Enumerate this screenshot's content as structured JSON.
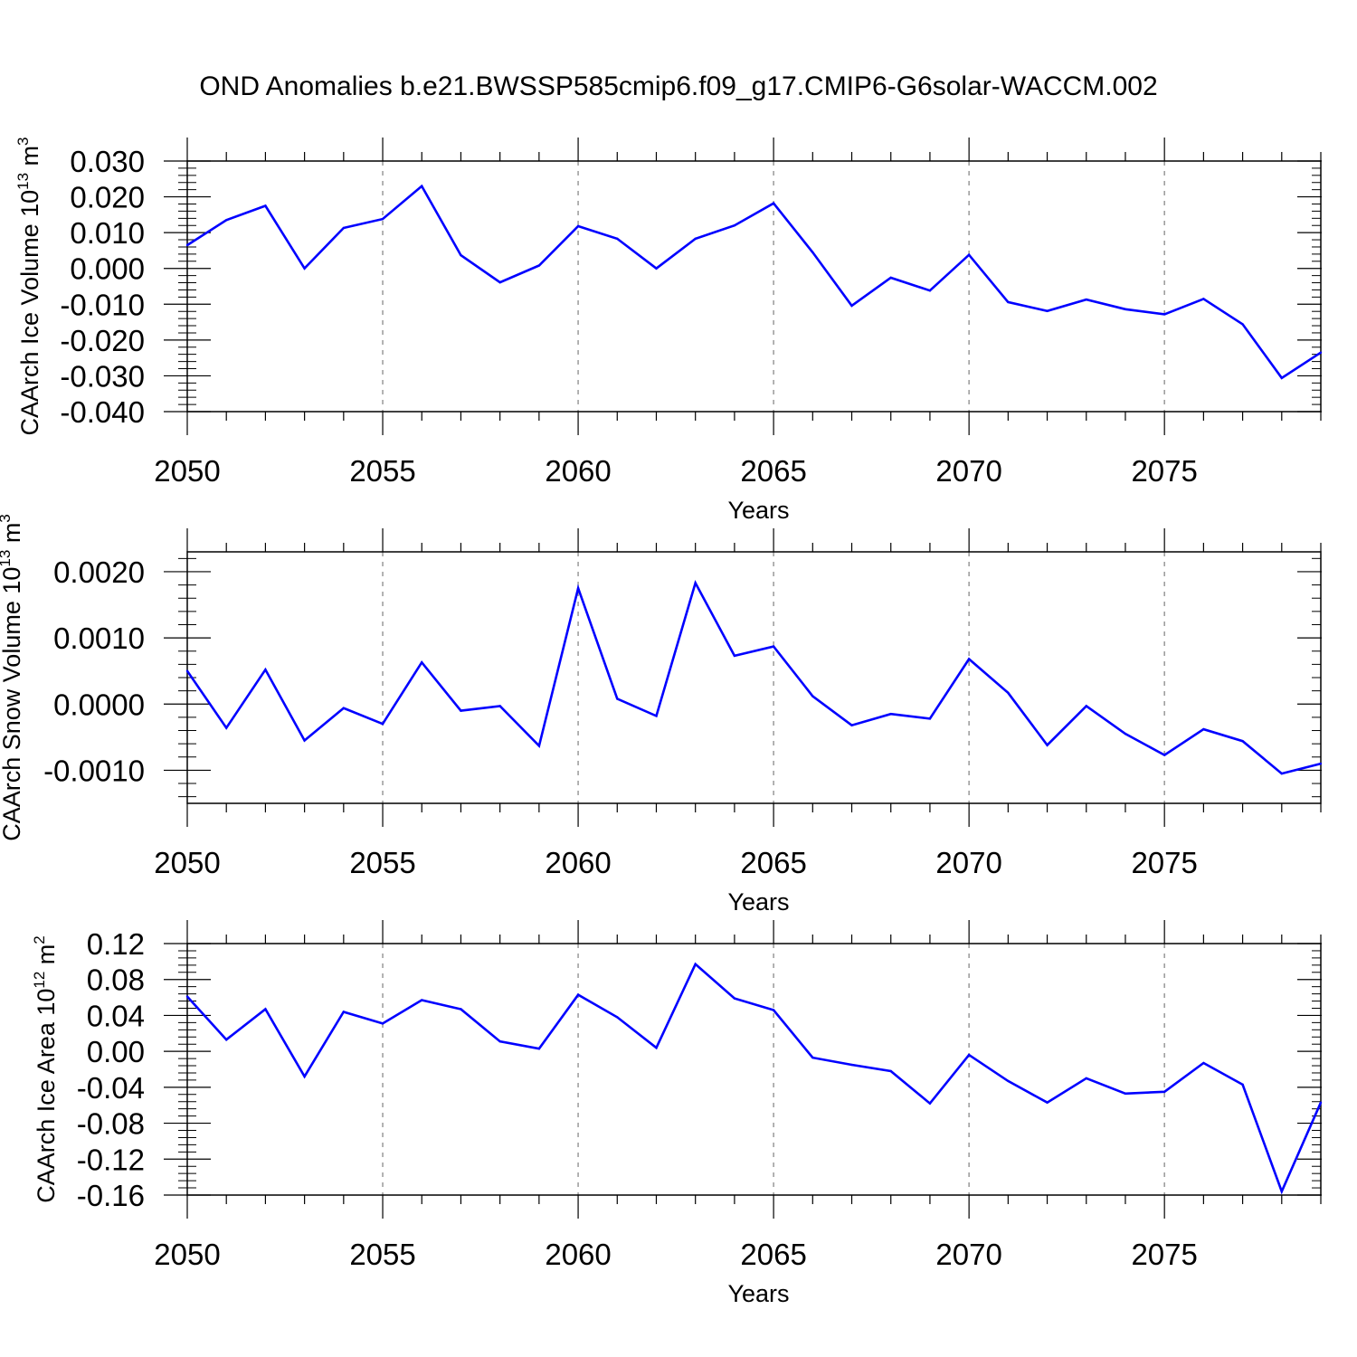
{
  "figure": {
    "title": "OND Anomalies b.e21.BWSSP585cmip6.f09_g17.CMIP6-G6solar-WACCM.002"
  },
  "colors": {
    "line": "#0000ff",
    "axis": "#000000",
    "grid": "#999999",
    "background": "#ffffff"
  },
  "chart_data": [
    {
      "type": "line",
      "title": "OND Anomalies b.e21.BWSSP585cmip6.f09_g17.CMIP6-G6solar-WACCM.002",
      "xlabel": "Years",
      "ylabel": {
        "text": "CAArch Ice Volume 10",
        "exp": "13",
        "unit": " m",
        "unit_exp": "3"
      },
      "xlim": [
        2050,
        2079
      ],
      "ylim": [
        -0.04,
        0.03
      ],
      "xticks": [
        2050,
        2055,
        2060,
        2065,
        2070,
        2075
      ],
      "xtick_labels": [
        "2050",
        "2055",
        "2060",
        "2065",
        "2070",
        "2075"
      ],
      "yticks": [
        -0.04,
        -0.03,
        -0.02,
        -0.01,
        0.0,
        0.01,
        0.02,
        0.03
      ],
      "ytick_labels": [
        "-0.040",
        "-0.030",
        "-0.020",
        "-0.010",
        "0.000",
        "0.010",
        "0.020",
        "0.030"
      ],
      "grid": "vertical dashed at major x ticks",
      "x": [
        2050,
        2051,
        2052,
        2053,
        2054,
        2055,
        2056,
        2057,
        2058,
        2059,
        2060,
        2061,
        2062,
        2063,
        2064,
        2065,
        2066,
        2067,
        2068,
        2069,
        2070,
        2071,
        2072,
        2073,
        2074,
        2075,
        2076,
        2077,
        2078,
        2079
      ],
      "values": [
        0.0065,
        0.0135,
        0.0175,
        0.0,
        0.0113,
        0.0138,
        0.023,
        0.0037,
        -0.0039,
        0.0008,
        0.0118,
        0.0083,
        0.0,
        0.0083,
        0.012,
        0.0182,
        0.0045,
        -0.0104,
        -0.0026,
        -0.0062,
        0.0038,
        -0.0094,
        -0.0119,
        -0.0087,
        -0.0114,
        -0.0128,
        -0.0085,
        -0.0156,
        -0.0306,
        -0.0235
      ]
    },
    {
      "type": "line",
      "xlabel": "Years",
      "ylabel": {
        "text": "CAArch Snow Volume 10",
        "exp": "13",
        "unit": " m",
        "unit_exp": "3"
      },
      "xlim": [
        2050,
        2079
      ],
      "ylim": [
        -0.0015,
        0.0023
      ],
      "xticks": [
        2050,
        2055,
        2060,
        2065,
        2070,
        2075
      ],
      "xtick_labels": [
        "2050",
        "2055",
        "2060",
        "2065",
        "2070",
        "2075"
      ],
      "yticks": [
        -0.001,
        0.0,
        0.001,
        0.002
      ],
      "ytick_labels": [
        "-0.0010",
        "0.0000",
        "0.0010",
        "0.0020"
      ],
      "grid": "vertical dashed at major x ticks",
      "x": [
        2050,
        2051,
        2052,
        2053,
        2054,
        2055,
        2056,
        2057,
        2058,
        2059,
        2060,
        2061,
        2062,
        2063,
        2064,
        2065,
        2066,
        2067,
        2068,
        2069,
        2070,
        2071,
        2072,
        2073,
        2074,
        2075,
        2076,
        2077,
        2078,
        2079
      ],
      "values": [
        0.0005,
        -0.00036,
        0.00052,
        -0.00055,
        -6e-05,
        -0.0003,
        0.00063,
        -0.0001,
        -3e-05,
        -0.00063,
        0.00175,
        8e-05,
        -0.00018,
        0.00183,
        0.00073,
        0.00087,
        0.00012,
        -0.00032,
        -0.00015,
        -0.00022,
        0.00068,
        0.00017,
        -0.00062,
        -3e-05,
        -0.00045,
        -0.00077,
        -0.00038,
        -0.00056,
        -0.00105,
        -0.0009
      ]
    },
    {
      "type": "line",
      "xlabel": "Years",
      "ylabel": {
        "text": "CAArch Ice Area 10",
        "exp": "12",
        "unit": " m",
        "unit_exp": "2"
      },
      "xlim": [
        2050,
        2079
      ],
      "ylim": [
        -0.16,
        0.12
      ],
      "xticks": [
        2050,
        2055,
        2060,
        2065,
        2070,
        2075
      ],
      "xtick_labels": [
        "2050",
        "2055",
        "2060",
        "2065",
        "2070",
        "2075"
      ],
      "yticks": [
        -0.16,
        -0.12,
        -0.08,
        -0.04,
        0.0,
        0.04,
        0.08,
        0.12
      ],
      "ytick_labels": [
        "-0.16",
        "-0.12",
        "-0.08",
        "-0.04",
        "0.00",
        "0.04",
        "0.08",
        "0.12"
      ],
      "grid": "vertical dashed at major x ticks",
      "x": [
        2050,
        2051,
        2052,
        2053,
        2054,
        2055,
        2056,
        2057,
        2058,
        2059,
        2060,
        2061,
        2062,
        2063,
        2064,
        2065,
        2066,
        2067,
        2068,
        2069,
        2070,
        2071,
        2072,
        2073,
        2074,
        2075,
        2076,
        2077,
        2078,
        2079
      ],
      "values": [
        0.061,
        0.013,
        0.047,
        -0.028,
        0.044,
        0.031,
        0.057,
        0.047,
        0.011,
        0.003,
        0.063,
        0.038,
        0.004,
        0.097,
        0.059,
        0.046,
        -0.007,
        -0.015,
        -0.022,
        -0.058,
        -0.004,
        -0.033,
        -0.057,
        -0.03,
        -0.047,
        -0.045,
        -0.013,
        -0.037,
        -0.156,
        -0.057
      ]
    }
  ]
}
